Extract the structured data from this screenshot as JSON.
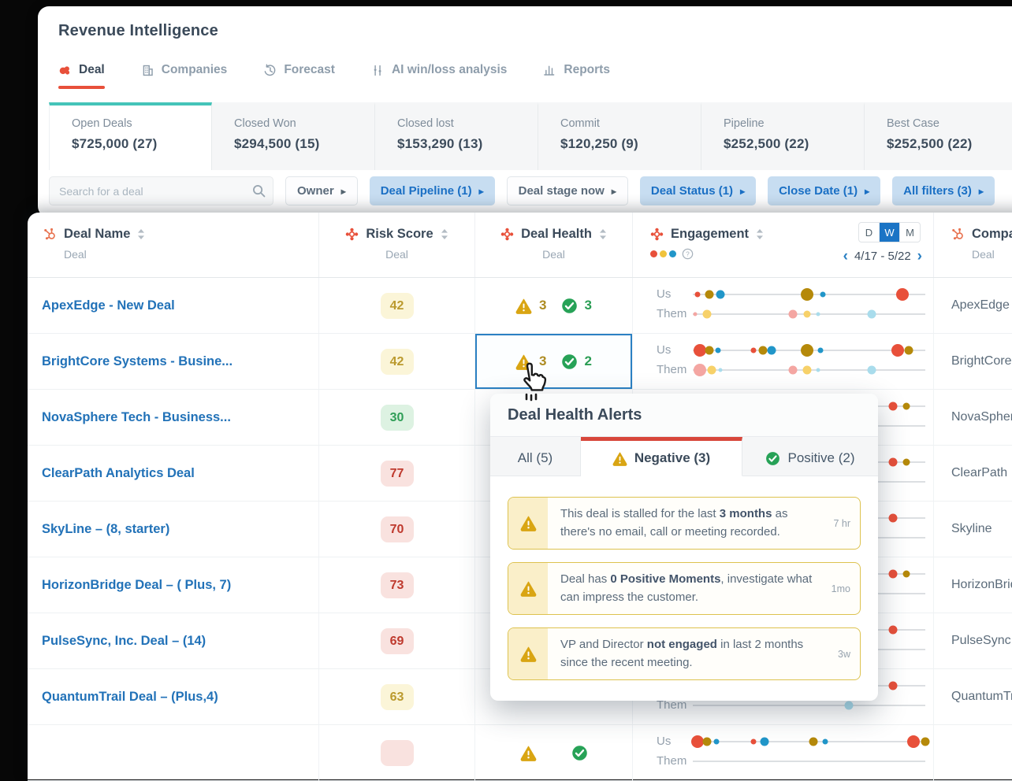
{
  "header": {
    "title": "Revenue Intelligence",
    "tabs": [
      {
        "label": "Deal",
        "icon": "gong-logo",
        "active": true
      },
      {
        "label": "Companies",
        "icon": "companies",
        "active": false
      },
      {
        "label": "Forecast",
        "icon": "forecast",
        "active": false
      },
      {
        "label": "AI win/loss analysis",
        "icon": "ai-winloss",
        "active": false
      },
      {
        "label": "Reports",
        "icon": "reports",
        "active": false
      }
    ]
  },
  "summary_cards": [
    {
      "label": "Open Deals",
      "value": "$725,000 (27)",
      "active": true
    },
    {
      "label": "Closed Won",
      "value": "$294,500 (15)",
      "active": false
    },
    {
      "label": "Closed lost",
      "value": "$153,290 (13)",
      "active": false
    },
    {
      "label": "Commit",
      "value": "$120,250 (9)",
      "active": false
    },
    {
      "label": "Pipeline",
      "value": "$252,500 (22)",
      "active": false
    },
    {
      "label": "Best Case",
      "value": "$252,500 (22)",
      "active": false
    }
  ],
  "filter_bar": {
    "search_placeholder": "Search for a deal",
    "chips": [
      {
        "label": "Owner",
        "variant": "outlined"
      },
      {
        "label": "Deal Pipeline (1)",
        "variant": "filled"
      },
      {
        "label": "Deal stage now",
        "variant": "outlined"
      },
      {
        "label": "Deal Status (1)",
        "variant": "filled"
      },
      {
        "label": "Close Date (1)",
        "variant": "filled"
      },
      {
        "label": "All filters (3)",
        "variant": "filled"
      }
    ]
  },
  "table": {
    "columns": [
      {
        "label": "Deal Name",
        "sub": "Deal",
        "icon": "hubspot"
      },
      {
        "label": "Risk Score",
        "sub": "Deal",
        "icon": "gong"
      },
      {
        "label": "Deal Health",
        "sub": "Deal",
        "icon": "gong"
      },
      {
        "label": "Engagement",
        "icon": "gong"
      },
      {
        "label": "Company",
        "sub": "Deal",
        "icon": "hubspot"
      }
    ],
    "period_toggle": {
      "options": [
        "D",
        "W",
        "M"
      ],
      "selected": "W"
    },
    "date_range": "4/17 - 5/22",
    "engagement_labels": {
      "us": "Us",
      "them": "Them"
    },
    "rows": [
      {
        "deal_name": "ApexEdge - New Deal",
        "risk_score": "42",
        "risk_level": "yellow",
        "health_negative": "3",
        "health_positive": "3",
        "selected": false,
        "company": "ApexEdge",
        "engagement": {
          "us": [
            [
              0.02,
              "red",
              "s"
            ],
            [
              0.07,
              "olive",
              "m"
            ],
            [
              0.12,
              "blue",
              "m"
            ],
            [
              0.49,
              "olive",
              "l"
            ],
            [
              0.56,
              "blue",
              "s"
            ],
            [
              0.9,
              "red",
              "l"
            ]
          ],
          "them": [
            [
              0.01,
              "pink",
              "xs"
            ],
            [
              0.06,
              "yellow",
              "m"
            ],
            [
              0.43,
              "pink",
              "m"
            ],
            [
              0.49,
              "yellow",
              "sm"
            ],
            [
              0.54,
              "lblue",
              "xs"
            ],
            [
              0.77,
              "lblue",
              "m"
            ]
          ]
        }
      },
      {
        "deal_name": "BrightCore Systems - Busine...",
        "risk_score": "42",
        "risk_level": "yellow",
        "health_negative": "3",
        "health_positive": "2",
        "selected": true,
        "company": "BrightCore",
        "engagement": {
          "us": [
            [
              0.03,
              "red",
              "l"
            ],
            [
              0.07,
              "olive",
              "m"
            ],
            [
              0.11,
              "blue",
              "s"
            ],
            [
              0.26,
              "red",
              "s"
            ],
            [
              0.3,
              "olive",
              "m"
            ],
            [
              0.34,
              "blue",
              "m"
            ],
            [
              0.49,
              "olive",
              "l"
            ],
            [
              0.55,
              "blue",
              "s"
            ],
            [
              0.88,
              "red",
              "l"
            ],
            [
              0.93,
              "olive",
              "m"
            ]
          ],
          "them": [
            [
              0.03,
              "pink",
              "l"
            ],
            [
              0.08,
              "yellow",
              "m"
            ],
            [
              0.12,
              "lblue",
              "xs"
            ],
            [
              0.43,
              "pink",
              "m"
            ],
            [
              0.49,
              "yellow",
              "m"
            ],
            [
              0.54,
              "lblue",
              "xs"
            ],
            [
              0.77,
              "lblue",
              "m"
            ]
          ]
        }
      },
      {
        "deal_name": "NovaSphere Tech - Business...",
        "risk_score": "30",
        "risk_level": "green",
        "selected": false,
        "company": "NovaSphere",
        "engagement": {
          "us": [
            [
              0.86,
              "red",
              "m"
            ],
            [
              0.92,
              "olive",
              "sm"
            ]
          ],
          "them": []
        }
      },
      {
        "deal_name": "ClearPath Analytics Deal",
        "risk_score": "77",
        "risk_level": "red",
        "selected": false,
        "company": "ClearPath",
        "engagement": {
          "us": [
            [
              0.86,
              "red",
              "m"
            ],
            [
              0.92,
              "olive",
              "sm"
            ]
          ],
          "them": []
        }
      },
      {
        "deal_name": "SkyLine – (8, starter)",
        "risk_score": "70",
        "risk_level": "red",
        "selected": false,
        "company": "Skyline",
        "engagement": {
          "us": [
            [
              0.86,
              "red",
              "m"
            ]
          ],
          "them": []
        }
      },
      {
        "deal_name": "HorizonBridge Deal – ( Plus, 7)",
        "risk_score": "73",
        "risk_level": "red",
        "selected": false,
        "company": "HorizonBridge",
        "engagement": {
          "us": [
            [
              0.86,
              "red",
              "m"
            ],
            [
              0.92,
              "olive",
              "sm"
            ]
          ],
          "them": []
        }
      },
      {
        "deal_name": "PulseSync, Inc. Deal – (14)",
        "risk_score": "69",
        "risk_level": "red",
        "selected": false,
        "company": "PulseSync",
        "engagement": {
          "us": [
            [
              0.86,
              "red",
              "m"
            ]
          ],
          "them": []
        }
      },
      {
        "deal_name": "QuantumTrail Deal – (Plus,4)",
        "risk_score": "63",
        "risk_level": "yellow",
        "selected": false,
        "company": "QuantumTrail",
        "engagement": {
          "us": [
            [
              0.86,
              "red",
              "m"
            ]
          ],
          "them": [
            [
              0.67,
              "lblue",
              "m"
            ]
          ]
        }
      },
      {
        "deal_name": "",
        "risk_score": "",
        "risk_level": "red",
        "health_icons_only": true,
        "selected": false,
        "company": "",
        "engagement": {
          "us": [
            [
              0.02,
              "red",
              "l"
            ],
            [
              0.06,
              "olive",
              "m"
            ],
            [
              0.1,
              "blue",
              "s"
            ],
            [
              0.26,
              "red",
              "s"
            ],
            [
              0.31,
              "blue",
              "m"
            ],
            [
              0.52,
              "olive",
              "m"
            ],
            [
              0.57,
              "blue",
              "s"
            ],
            [
              0.95,
              "red",
              "l"
            ],
            [
              1.0,
              "olive",
              "m"
            ]
          ],
          "them": []
        }
      }
    ]
  },
  "popup": {
    "title": "Deal Health Alerts",
    "tabs": [
      {
        "label": "All (5)",
        "icon": null,
        "active": false
      },
      {
        "label": "Negative (3)",
        "icon": "warning",
        "active": true
      },
      {
        "label": "Positive (2)",
        "icon": "check",
        "active": false
      }
    ],
    "alerts": [
      {
        "time": "7 hr",
        "segments": [
          {
            "text": "This deal is stalled for the last ",
            "bold": false
          },
          {
            "text": "3 months",
            "bold": true
          },
          {
            "text": " as there's no email, call or meeting recorded.",
            "bold": false
          }
        ]
      },
      {
        "time": "1mo",
        "segments": [
          {
            "text": "Deal has ",
            "bold": false
          },
          {
            "text": "0 Positive Moments",
            "bold": true
          },
          {
            "text": ", investigate what can impress the customer.",
            "bold": false
          }
        ]
      },
      {
        "time": "3w",
        "segments": [
          {
            "text": "VP and Director ",
            "bold": false
          },
          {
            "text": "not engaged",
            "bold": true
          },
          {
            "text": " in last 2 months since the recent meeting.",
            "bold": false
          }
        ]
      }
    ]
  },
  "colors": {
    "accent_red": "#e8503a",
    "teal": "#45c4b9",
    "link_blue": "#2272b8",
    "filter_blue": "#1a6fc4",
    "warning_gold": "#d9a513",
    "positive_green": "#27a257",
    "popup_tab_bar_red": "#d8473b",
    "risk_yellow_bg": "#fbf5d8",
    "risk_yellow_text": "#bb9a2e",
    "risk_green_bg": "#ddf2e2",
    "risk_green_text": "#2f9e57",
    "risk_red_bg": "#f9e2df",
    "risk_red_text": "#bf3a2e"
  },
  "engagement_colors": {
    "red": "#e8503a",
    "olive": "#b5890a",
    "blue": "#2196c9",
    "pink": "#f4a6a2",
    "yellow": "#f7d169",
    "lblue": "#a9dcec"
  },
  "engagement_legend_dots": [
    "#e8503a",
    "#f0c33c",
    "#2196c9"
  ]
}
